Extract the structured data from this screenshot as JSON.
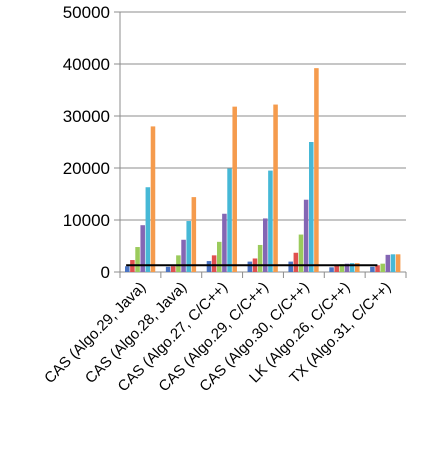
{
  "chart_data": {
    "type": "bar",
    "title": "",
    "xlabel": "",
    "ylabel": "",
    "ylim": [
      0,
      50000
    ],
    "yticks": [
      "0",
      "10000",
      "20000",
      "30000",
      "40000",
      "50000"
    ],
    "grid": true,
    "categories": [
      "CAS (Algo.29, Java)",
      "CAS (Algo.28, Java)",
      "CAS (Algo.27, C/C++)",
      "CAS (Algo.29, C/C++)",
      "CAS (Algo.30, C/C++)",
      "LK (Algo.26, C/C++)",
      "TX (Algo.31, C/C++)"
    ],
    "series_colors": [
      "#4a74c4",
      "#e0504f",
      "#9bcb5c",
      "#8466b4",
      "#46b8d6",
      "#f59b4d"
    ],
    "series": [
      {
        "values": [
          1100,
          1000,
          2100,
          2000,
          2000,
          900,
          1000
        ]
      },
      {
        "values": [
          2300,
          1100,
          3200,
          2600,
          3700,
          1200,
          1300
        ]
      },
      {
        "values": [
          4800,
          3200,
          5800,
          5200,
          7200,
          1500,
          1600
        ]
      },
      {
        "values": [
          9000,
          6200,
          11200,
          10300,
          13900,
          1600,
          3300
        ]
      },
      {
        "values": [
          16300,
          9800,
          19900,
          19500,
          25000,
          1700,
          3400
        ]
      },
      {
        "values": [
          28000,
          14400,
          31800,
          32200,
          39200,
          1700,
          3400
        ]
      }
    ],
    "reference_line": {
      "value": 1300,
      "color": "#000000"
    }
  }
}
